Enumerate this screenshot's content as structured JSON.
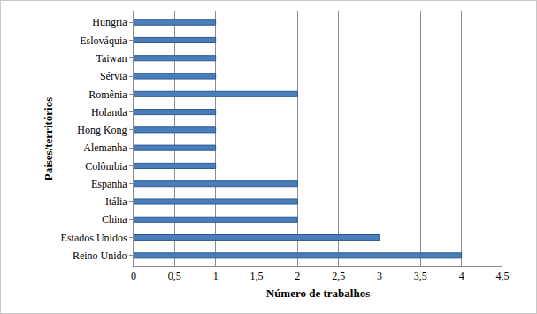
{
  "chart_data": {
    "type": "bar",
    "orientation": "horizontal",
    "x_label": "Número de trabalhos",
    "y_label": "Países/territórios",
    "categories": [
      "Reino Unido",
      "Estados Unidos",
      "China",
      "Itália",
      "Espanha",
      "Colômbia",
      "Alemanha",
      "Hong Kong",
      "Holanda",
      "Romênia",
      "Sérvia",
      "Taiwan",
      "Eslováquia",
      "Hungria"
    ],
    "values": [
      4,
      3,
      2,
      2,
      2,
      1,
      1,
      1,
      1,
      2,
      1,
      1,
      1,
      1
    ],
    "color": "#4a7ebb",
    "xlim": [
      0,
      4.5
    ],
    "xticks": [
      0,
      {
        "value": 0.5,
        "label": "0,5"
      },
      1,
      {
        "value": 1.5,
        "label": "1,5"
      },
      2,
      {
        "value": 2.5,
        "label": "2,5"
      },
      3,
      {
        "value": 3.5,
        "label": "3,5"
      },
      4,
      {
        "value": 4.5,
        "label": "4,5"
      }
    ],
    "grid": true
  }
}
